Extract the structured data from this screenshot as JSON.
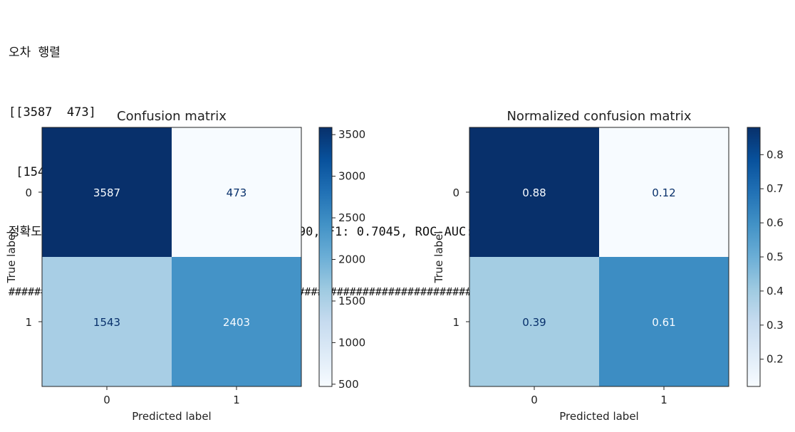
{
  "console": {
    "line1": "오차 행렬",
    "line2": "[[3587  473]",
    "line3": " [1543 2403]]",
    "line4": "정확도: 0.7482, 정밀도: 0.8355, 재현율: 0.6090, F1: 0.7045, ROC-AUC: 0.7462",
    "line5": "##########################################################################"
  },
  "colors": {
    "cmap": [
      "#f7fbff",
      "#deebf7",
      "#c6dbef",
      "#9ecae1",
      "#6baed6",
      "#4292c6",
      "#2171b5",
      "#08519c",
      "#08306b"
    ]
  },
  "chart_data": [
    {
      "type": "heatmap",
      "title": "Confusion matrix",
      "xlabel": "Predicted label",
      "ylabel": "True label",
      "x_categories": [
        "0",
        "1"
      ],
      "y_categories": [
        "0",
        "1"
      ],
      "values": [
        [
          3587,
          473
        ],
        [
          1543,
          2403
        ]
      ],
      "cell_labels": [
        [
          "3587",
          "473"
        ],
        [
          "1543",
          "2403"
        ]
      ],
      "colorbar": {
        "min": 473,
        "max": 3587,
        "ticks": [
          500,
          1000,
          1500,
          2000,
          2500,
          3000,
          3500
        ],
        "tick_labels": [
          "500",
          "1000",
          "1500",
          "2000",
          "2500",
          "3000",
          "3500"
        ]
      }
    },
    {
      "type": "heatmap",
      "title": "Normalized confusion matrix",
      "xlabel": "Predicted label",
      "ylabel": "True label",
      "x_categories": [
        "0",
        "1"
      ],
      "y_categories": [
        "0",
        "1"
      ],
      "values": [
        [
          0.88,
          0.12
        ],
        [
          0.39,
          0.61
        ]
      ],
      "cell_labels": [
        [
          "0.88",
          "0.12"
        ],
        [
          "0.39",
          "0.61"
        ]
      ],
      "colorbar": {
        "min": 0.12,
        "max": 0.88,
        "ticks": [
          0.2,
          0.3,
          0.4,
          0.5,
          0.6,
          0.7,
          0.8
        ],
        "tick_labels": [
          "0.2",
          "0.3",
          "0.4",
          "0.5",
          "0.6",
          "0.7",
          "0.8"
        ]
      }
    }
  ]
}
